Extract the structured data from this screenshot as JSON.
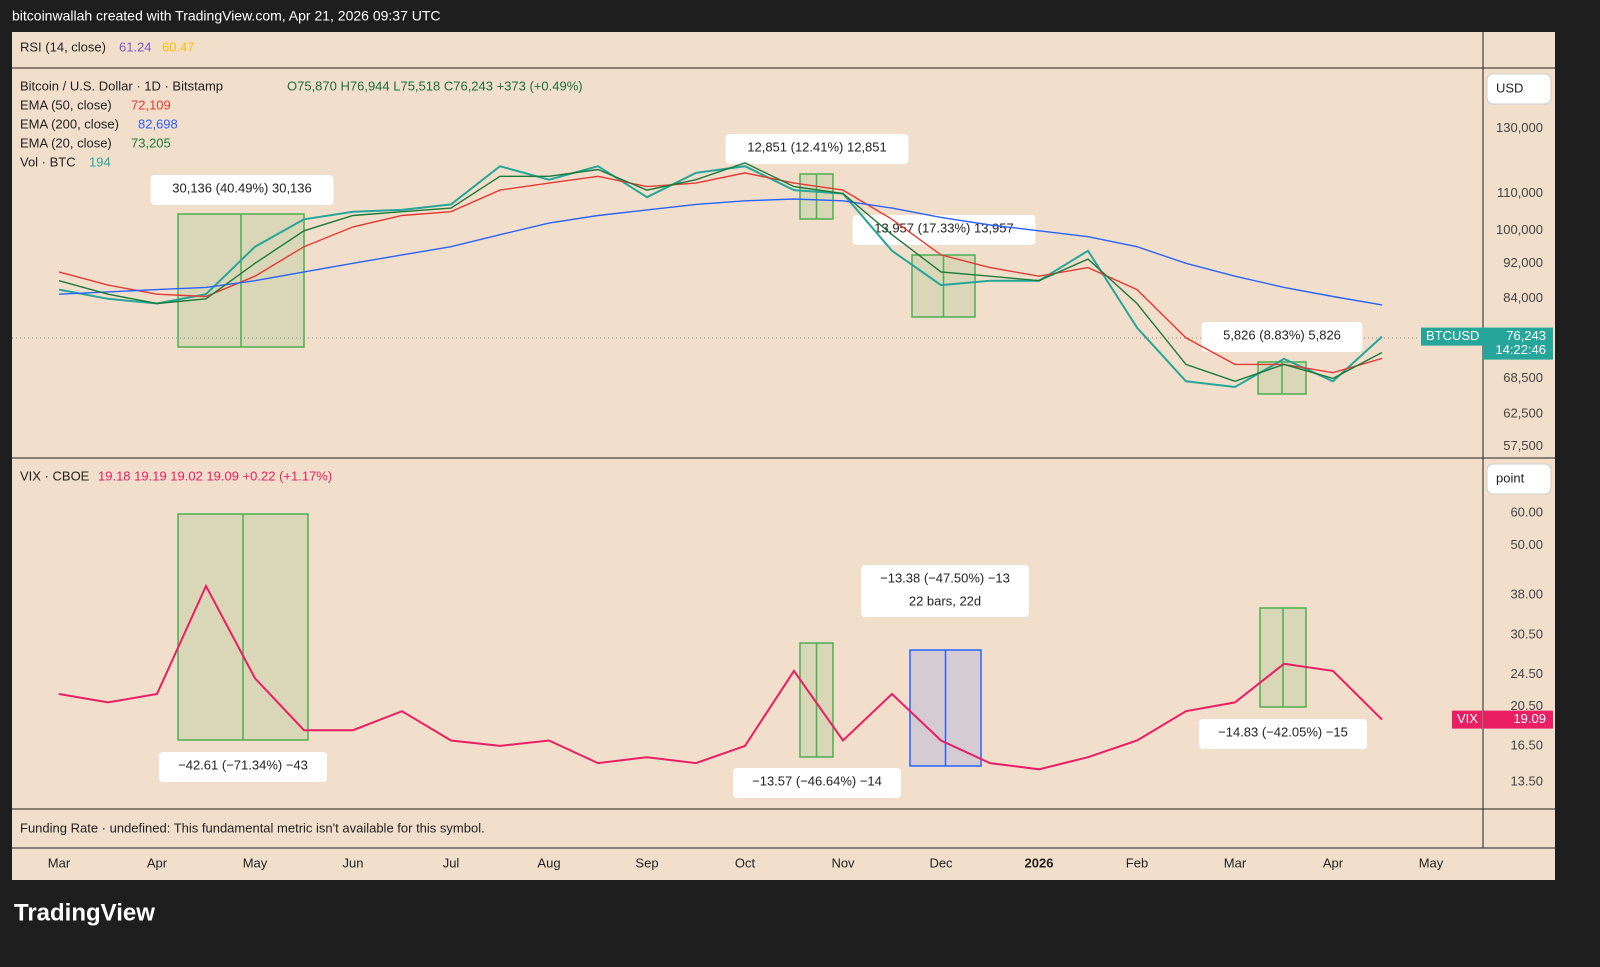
{
  "header": "bitcoinwallah created with TradingView.com, Apr 21, 2026 09:37 UTC",
  "rsi_legend": {
    "label": "RSI (14, close)",
    "values": [
      "61.24",
      "60.47"
    ]
  },
  "funding_note": "Funding Rate · undefined: This fundamental metric isn't available for this symbol.",
  "footer": "TradingView",
  "chart_data": [
    {
      "type": "line",
      "title": "Bitcoin / U.S. Dollar · 1D · Bitstamp",
      "ohlc": "O75,870 H76,944 L75,518 C76,243 +373 (+0.49%)",
      "unit": "USD",
      "log_scale": true,
      "ylim": [
        56000,
        151000
      ],
      "yticks": [
        {
          "value": 130000,
          "label": "130,000"
        },
        {
          "value": 110000,
          "label": "110,000"
        },
        {
          "value": 100000,
          "label": "100,000"
        },
        {
          "value": 92000,
          "label": "92,000"
        },
        {
          "value": 84000,
          "label": "84,000"
        },
        {
          "value": 68500,
          "label": "68,500"
        },
        {
          "value": 62500,
          "label": "62,500"
        },
        {
          "value": 57500,
          "label": "57,500"
        }
      ],
      "series": [
        {
          "name": "BTCUSD",
          "color": "#26a69a",
          "value_label": "76,243",
          "countdown": "14:22:46",
          "values": [
            86000,
            84000,
            83000,
            85000,
            96000,
            103000,
            105000,
            105500,
            107000,
            118000,
            114000,
            118000,
            109000,
            116000,
            118000,
            111000,
            110000,
            95000,
            87000,
            88000,
            88000,
            95000,
            78000,
            68000,
            67000,
            72000,
            68000,
            76243,
            null,
            null
          ]
        },
        {
          "name": "EMA (50, close)",
          "color": "#e53935",
          "legend_value": "72,109",
          "values": [
            90000,
            87000,
            85000,
            84500,
            89000,
            96000,
            101000,
            104000,
            105000,
            111000,
            113000,
            115000,
            112000,
            113000,
            116000,
            113000,
            111000,
            103000,
            94000,
            91000,
            89000,
            91000,
            86000,
            76000,
            71000,
            71000,
            69500,
            72109,
            null,
            null
          ]
        },
        {
          "name": "EMA (200, close)",
          "color": "#2962ff",
          "legend_value": "82,698",
          "values": [
            85000,
            85500,
            86000,
            86500,
            88000,
            90000,
            92000,
            94000,
            96000,
            99000,
            102000,
            104000,
            105500,
            107000,
            108000,
            108500,
            108000,
            106000,
            103500,
            101500,
            100000,
            98500,
            96000,
            92000,
            89000,
            86500,
            84500,
            82698,
            null,
            null
          ]
        },
        {
          "name": "EMA (20, close)",
          "color": "#1b7a3a",
          "legend_value": "73,205",
          "values": [
            88000,
            85000,
            83000,
            84000,
            92000,
            100000,
            104000,
            105000,
            106000,
            115000,
            115000,
            117000,
            111000,
            114000,
            119000,
            112000,
            110000,
            99000,
            90000,
            89000,
            88000,
            93000,
            83000,
            71000,
            68000,
            71000,
            68500,
            73205,
            null,
            null
          ]
        }
      ],
      "indicators": [
        {
          "label": "Vol · BTC",
          "value": "194"
        }
      ],
      "annotations": [
        {
          "lines": [
            "30,136 (40.49%) 30,136"
          ]
        },
        {
          "lines": [
            "12,851 (12.41%) 12,851"
          ]
        },
        {
          "lines": [
            "13,957 (17.33%) 13,957"
          ]
        },
        {
          "lines": [
            "5,826 (8.83%) 5,826"
          ]
        }
      ]
    },
    {
      "type": "line",
      "title": "VIX · CBOE",
      "ohlc": "19.18 19.19 19.02 19.09 +0.22 (+1.17%)",
      "unit": "point",
      "log_scale": true,
      "ylim": [
        11.7,
        80.4
      ],
      "yticks": [
        {
          "value": 60,
          "label": "60.00"
        },
        {
          "value": 50,
          "label": "50.00"
        },
        {
          "value": 38,
          "label": "38.00"
        },
        {
          "value": 30.5,
          "label": "30.50"
        },
        {
          "value": 24.5,
          "label": "24.50"
        },
        {
          "value": 20.5,
          "label": "20.50"
        },
        {
          "value": 16.5,
          "label": "16.50"
        },
        {
          "value": 13.5,
          "label": "13.50"
        }
      ],
      "categories": [
        "Mar",
        null,
        "Apr",
        null,
        "May",
        null,
        "Jun",
        null,
        "Jul",
        null,
        "Aug",
        null,
        "Sep",
        null,
        "Oct",
        null,
        "Nov",
        null,
        "Dec",
        null,
        "2026",
        null,
        "Feb",
        null,
        "Mar",
        null,
        "Apr",
        null,
        "May",
        null
      ],
      "series": [
        {
          "name": "VIX",
          "color": "#e91e63",
          "value_label": "19.09",
          "values": [
            22,
            21,
            22,
            40,
            24,
            18,
            18,
            20,
            17,
            16.5,
            17,
            15,
            15.5,
            15,
            16.5,
            25,
            17,
            22,
            17,
            15,
            14.5,
            15.5,
            17,
            20,
            21,
            26,
            25,
            19.09,
            null,
            null
          ]
        }
      ],
      "annotations": [
        {
          "lines": [
            "−42.61 (−71.34%) −43"
          ]
        },
        {
          "lines": [
            "−13.57 (−46.64%) −14"
          ]
        },
        {
          "lines": [
            "−13.38 (−47.50%) −13",
            "22 bars, 22d"
          ]
        },
        {
          "lines": [
            "−14.83 (−42.05%) −15"
          ]
        }
      ]
    }
  ]
}
